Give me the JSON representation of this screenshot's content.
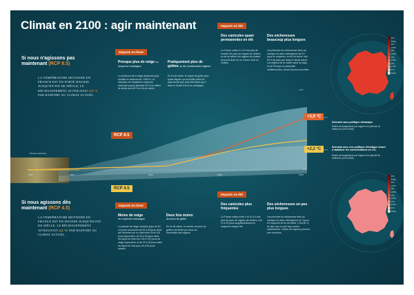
{
  "title": "Climat en 2100 : agir maintenant",
  "scenario_high": {
    "heading_pre": "Si nous n'agissons pas maintenant",
    "rcp": "(RCP 8.5)",
    "body_pre": "La température moyenne en France est en forte hausse jusqu'en fin de siècle, le réchauffement atteignait",
    "value": "3,9 °C",
    "body_post": "par rapport au climat actuel."
  },
  "scenario_low": {
    "heading_pre": "Si nous agissons dès maintenant",
    "rcp": "(RCP 4.5)",
    "body_pre": "La température moyenne en France est en hausse jusqu'en fin de siècle. Le réchauffement atteignait",
    "value": "2,2 °C",
    "body_post": "par rapport au climat actuel."
  },
  "winter_high": {
    "tag": "Impacts en hiver",
    "c1_title": "Presque plus de neige",
    "c1_sub": "en moyenne montagne",
    "c1_body": "La présence de la neige diminuera plus durable en dessous de 1 800 m : la réduction de l'épaisseur moyenne hivernale pourra atteindre 50 % en milieu de siècle puis 80 % en fin de siècle.",
    "c2_title": "Pratiquement plus de gelées",
    "c2_sub": "ou de nombreuses régions",
    "c2_body": "En fin de siècle, le risque de gelée aura quasi disparu sur la moitié ouest du pays tandis qu'il aura été divisé par 4 dans le Grand-Est et en montagne."
  },
  "summer_high": {
    "tag": "Impacts en été",
    "c1_title": "Des canicules quasi permanentes en été",
    "c1_body": "La France subira 4 à 10 fois plus de nombre de jours de vagues de chaleur en fin de siècle, les vagues de chaleur pourront durer de un à deux mois en continu.",
    "c2_title": "Des sécheresses beaucoup plus longues",
    "c2_body": "Les périodes de sécheresses liées au manque de pluie s'allongeront de 16 jours en moyenne, en fin de siècle, soit 50 % de plus que dans le climat actuel. Les régions de la moitié ouest du pays, et de l'Europe en particulier méditerranéen, seront les plus touchées."
  },
  "winter_low": {
    "tag": "Impacts en hiver",
    "c1_title": "Moins de neige",
    "c1_sub": "en moyenne montagne",
    "c1_body": "La période de neige cumulée (plus de 50 cm) sera raccourcie de 33 à 63 jours dans les Pyrénées sur un total entre 40 et 100 jours aujourd'hui, de 20 à 40 jours dans les Alpes du Nord sur 100 à 120 jours de neige aujourd'hui, et de 20 à 30 jours dans les Alpes du Sud pour 40 à 50 jours actuels.",
    "c2_title": "Deux fois moins",
    "c2_sub": "de jours de gelée",
    "c2_body": "En fin de siècle, le nombre de jours de gelées est divisé par deux sur l'ensemble des régions."
  },
  "summer_low": {
    "tag": "Impacts en été",
    "c1_title": "Des canicules plus fréquentes",
    "c1_body": "La France subira entre 4 et 10 à 4 fois plus de jours de vagues de chaleur, soit 10 à 15 jours supplémentaires en moyenne chaque été.",
    "c2_title": "Des sécheresses un peu plus longues",
    "c2_body": "Les périodes de sécheresse liées au manque de pluie s'allongeront de 3 jours en moyenne en fin de siècle. C'est 60 % de plus que ce que nous avons actuellement. Toutes les régions pourront être touchées."
  },
  "chart": {
    "badge_rcp85": "RCP 8.5",
    "badge_rcp45": "RCP 4.5",
    "temp_high": "+3,9 °C",
    "temp_low": "+2,2 °C",
    "historical_label": "Période historique",
    "x_ticks": [
      "1900",
      "1950",
      "2000",
      "2050",
      "2100"
    ],
    "y_max_label": "+6°C",
    "y_label": "0°C"
  },
  "chart_data": {
    "type": "line",
    "series": [
      {
        "name": "RCP 8.5",
        "x": [
          1900,
          2000,
          2020,
          2040,
          2060,
          2080,
          2100
        ],
        "y": [
          0.0,
          0.3,
          0.8,
          1.5,
          2.3,
          3.1,
          3.9
        ]
      },
      {
        "name": "RCP 4.5",
        "x": [
          1900,
          2000,
          2020,
          2040,
          2060,
          2080,
          2100
        ],
        "y": [
          0.0,
          0.3,
          0.8,
          1.3,
          1.7,
          2.0,
          2.2
        ]
      }
    ],
    "x_range": [
      1900,
      2100
    ]
  },
  "map_high": {
    "caption": "Scénario sans politique climatique",
    "sub": "Écarts de température par rapport à la période de référence (1976-2005)",
    "color": "#e23b2c"
  },
  "map_low": {
    "caption": "Scénario avec une politique climatique visant à stabiliser les concentrations en CO₂",
    "sub": "Écarts de température par rapport à la période de référence (1976-2005)",
    "color": "#f08a8a"
  },
  "legend_labels": [
    "0.5°C",
    "1°C",
    "1.5°C",
    "2°C",
    "2.5°C",
    "3°C",
    "3.5°C",
    "4°C",
    "4.5°C",
    "5°C",
    "5.5°C",
    "6°C"
  ],
  "legend_colors": [
    "#fce6dc",
    "#f9cdbd",
    "#f5b09d",
    "#f0937d",
    "#ea765e",
    "#e35a42",
    "#d8412d",
    "#c8301f",
    "#b42216",
    "#9e160e",
    "#860c08",
    "#6d0503"
  ]
}
